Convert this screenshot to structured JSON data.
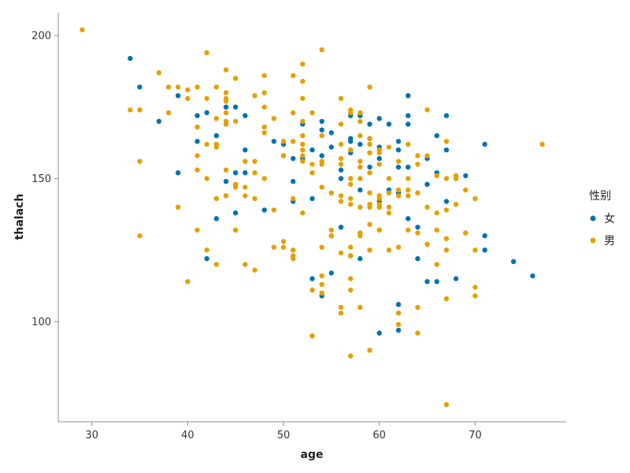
{
  "chart_data": {
    "type": "scatter",
    "xlabel": "age",
    "ylabel": "thalach",
    "xlim": [
      26.5,
      79.5
    ],
    "ylim": [
      65,
      208
    ],
    "xticks": [
      30,
      40,
      50,
      60,
      70
    ],
    "yticks": [
      100,
      150,
      200
    ],
    "grid": false,
    "legend": {
      "title": "性别",
      "position": "right"
    },
    "series": [
      {
        "name": "女",
        "color": "#0072b2",
        "points": [
          [
            34,
            192
          ],
          [
            35,
            182
          ],
          [
            37,
            170
          ],
          [
            39,
            179
          ],
          [
            39,
            152
          ],
          [
            41,
            172
          ],
          [
            41,
            163
          ],
          [
            42,
            173
          ],
          [
            42,
            122
          ],
          [
            43,
            165
          ],
          [
            43,
            136
          ],
          [
            44,
            175
          ],
          [
            44,
            149
          ],
          [
            45,
            175
          ],
          [
            45,
            152
          ],
          [
            45,
            138
          ],
          [
            46,
            172
          ],
          [
            46,
            160
          ],
          [
            46,
            152
          ],
          [
            48,
            139
          ],
          [
            49,
            163
          ],
          [
            50,
            162
          ],
          [
            50,
            158
          ],
          [
            51,
            157
          ],
          [
            51,
            149
          ],
          [
            51,
            142
          ],
          [
            52,
            169
          ],
          [
            52,
            157
          ],
          [
            53,
            160
          ],
          [
            53,
            143
          ],
          [
            53,
            115
          ],
          [
            54,
            170
          ],
          [
            54,
            167
          ],
          [
            54,
            158
          ],
          [
            54,
            109
          ],
          [
            55,
            166
          ],
          [
            55,
            161
          ],
          [
            55,
            130
          ],
          [
            55,
            117
          ],
          [
            56,
            153
          ],
          [
            56,
            150
          ],
          [
            56,
            133
          ],
          [
            57,
            172
          ],
          [
            57,
            164
          ],
          [
            57,
            163
          ],
          [
            57,
            159
          ],
          [
            57,
            123
          ],
          [
            58,
            172
          ],
          [
            58,
            162
          ],
          [
            58,
            146
          ],
          [
            58,
            122
          ],
          [
            59,
            169
          ],
          [
            59,
            164
          ],
          [
            59,
            154
          ],
          [
            60,
            171
          ],
          [
            60,
            161
          ],
          [
            60,
            157
          ],
          [
            60,
            142
          ],
          [
            60,
            96
          ],
          [
            61,
            169
          ],
          [
            61,
            146
          ],
          [
            62,
            163
          ],
          [
            62,
            160
          ],
          [
            62,
            154
          ],
          [
            62,
            145
          ],
          [
            62,
            106
          ],
          [
            62,
            97
          ],
          [
            63,
            179
          ],
          [
            63,
            172
          ],
          [
            63,
            169
          ],
          [
            63,
            154
          ],
          [
            63,
            136
          ],
          [
            64,
            133
          ],
          [
            64,
            122
          ],
          [
            65,
            157
          ],
          [
            65,
            148
          ],
          [
            65,
            114
          ],
          [
            66,
            165
          ],
          [
            66,
            152
          ],
          [
            66,
            114
          ],
          [
            67,
            172
          ],
          [
            67,
            160
          ],
          [
            67,
            142
          ],
          [
            68,
            115
          ],
          [
            69,
            151
          ],
          [
            71,
            162
          ],
          [
            71,
            130
          ],
          [
            71,
            125
          ],
          [
            74,
            121
          ],
          [
            76,
            116
          ]
        ]
      },
      {
        "name": "男",
        "color": "#e69f00",
        "points": [
          [
            29,
            202
          ],
          [
            34,
            174
          ],
          [
            35,
            174
          ],
          [
            35,
            156
          ],
          [
            35,
            130
          ],
          [
            37,
            187
          ],
          [
            38,
            182
          ],
          [
            38,
            173
          ],
          [
            39,
            182
          ],
          [
            39,
            140
          ],
          [
            40,
            181
          ],
          [
            40,
            178
          ],
          [
            40,
            114
          ],
          [
            41,
            182
          ],
          [
            41,
            168
          ],
          [
            41,
            158
          ],
          [
            41,
            153
          ],
          [
            41,
            132
          ],
          [
            42,
            194
          ],
          [
            42,
            178
          ],
          [
            42,
            162
          ],
          [
            42,
            150
          ],
          [
            42,
            125
          ],
          [
            43,
            182
          ],
          [
            43,
            171
          ],
          [
            43,
            162
          ],
          [
            43,
            161
          ],
          [
            43,
            143
          ],
          [
            43,
            120
          ],
          [
            44,
            188
          ],
          [
            44,
            180
          ],
          [
            44,
            178
          ],
          [
            44,
            177
          ],
          [
            44,
            173
          ],
          [
            44,
            170
          ],
          [
            44,
            169
          ],
          [
            44,
            153
          ],
          [
            44,
            144
          ],
          [
            45,
            185
          ],
          [
            45,
            170
          ],
          [
            45,
            148
          ],
          [
            45,
            147
          ],
          [
            45,
            132
          ],
          [
            46,
            156
          ],
          [
            46,
            147
          ],
          [
            46,
            144
          ],
          [
            46,
            120
          ],
          [
            47,
            179
          ],
          [
            47,
            156
          ],
          [
            47,
            152
          ],
          [
            47,
            143
          ],
          [
            47,
            118
          ],
          [
            48,
            186
          ],
          [
            48,
            180
          ],
          [
            48,
            175
          ],
          [
            48,
            168
          ],
          [
            48,
            166
          ],
          [
            48,
            150
          ],
          [
            49,
            171
          ],
          [
            49,
            139
          ],
          [
            49,
            126
          ],
          [
            50,
            163
          ],
          [
            50,
            158
          ],
          [
            50,
            128
          ],
          [
            50,
            126
          ],
          [
            51,
            186
          ],
          [
            51,
            173
          ],
          [
            51,
            163
          ],
          [
            51,
            143
          ],
          [
            51,
            125
          ],
          [
            51,
            123
          ],
          [
            51,
            122
          ],
          [
            52,
            190
          ],
          [
            52,
            184
          ],
          [
            52,
            178
          ],
          [
            52,
            170
          ],
          [
            52,
            165
          ],
          [
            52,
            162
          ],
          [
            52,
            160
          ],
          [
            52,
            158
          ],
          [
            52,
            156
          ],
          [
            52,
            138
          ],
          [
            53,
            173
          ],
          [
            53,
            155
          ],
          [
            53,
            152
          ],
          [
            53,
            111
          ],
          [
            53,
            95
          ],
          [
            54,
            195
          ],
          [
            54,
            165
          ],
          [
            54,
            156
          ],
          [
            54,
            155
          ],
          [
            54,
            147
          ],
          [
            54,
            126
          ],
          [
            54,
            116
          ],
          [
            54,
            113
          ],
          [
            54,
            110
          ],
          [
            55,
            145
          ],
          [
            55,
            132
          ],
          [
            55,
            130
          ],
          [
            56,
            178
          ],
          [
            56,
            169
          ],
          [
            56,
            162
          ],
          [
            56,
            157
          ],
          [
            56,
            155
          ],
          [
            56,
            144
          ],
          [
            56,
            142
          ],
          [
            56,
            124
          ],
          [
            56,
            105
          ],
          [
            56,
            103
          ],
          [
            57,
            174
          ],
          [
            57,
            173
          ],
          [
            57,
            160
          ],
          [
            57,
            150
          ],
          [
            57,
            148
          ],
          [
            57,
            143
          ],
          [
            57,
            141
          ],
          [
            57,
            126
          ],
          [
            57,
            123
          ],
          [
            57,
            115
          ],
          [
            57,
            111
          ],
          [
            57,
            88
          ],
          [
            58,
            173
          ],
          [
            58,
            170
          ],
          [
            58,
            165
          ],
          [
            58,
            156
          ],
          [
            58,
            154
          ],
          [
            58,
            150
          ],
          [
            58,
            140
          ],
          [
            58,
            131
          ],
          [
            58,
            130
          ],
          [
            58,
            105
          ],
          [
            59,
            182
          ],
          [
            59,
            164
          ],
          [
            59,
            162
          ],
          [
            59,
            159
          ],
          [
            59,
            152
          ],
          [
            59,
            145
          ],
          [
            59,
            141
          ],
          [
            59,
            140
          ],
          [
            59,
            134
          ],
          [
            59,
            125
          ],
          [
            59,
            90
          ],
          [
            60,
            160
          ],
          [
            60,
            159
          ],
          [
            60,
            155
          ],
          [
            60,
            144
          ],
          [
            60,
            143
          ],
          [
            60,
            141
          ],
          [
            60,
            140
          ],
          [
            60,
            132
          ],
          [
            61,
            161
          ],
          [
            61,
            150
          ],
          [
            61,
            145
          ],
          [
            61,
            140
          ],
          [
            61,
            138
          ],
          [
            61,
            125
          ],
          [
            62,
            156
          ],
          [
            62,
            146
          ],
          [
            62,
            144
          ],
          [
            62,
            126
          ],
          [
            62,
            103
          ],
          [
            62,
            99
          ],
          [
            63,
            162
          ],
          [
            63,
            150
          ],
          [
            63,
            146
          ],
          [
            63,
            144
          ],
          [
            63,
            132
          ],
          [
            64,
            158
          ],
          [
            64,
            155
          ],
          [
            64,
            145
          ],
          [
            64,
            131
          ],
          [
            64,
            105
          ],
          [
            64,
            96
          ],
          [
            65,
            174
          ],
          [
            65,
            158
          ],
          [
            65,
            140
          ],
          [
            65,
            127
          ],
          [
            66,
            151
          ],
          [
            66,
            138
          ],
          [
            66,
            132
          ],
          [
            66,
            120
          ],
          [
            67,
            163
          ],
          [
            67,
            150
          ],
          [
            67,
            139
          ],
          [
            67,
            129
          ],
          [
            67,
            125
          ],
          [
            67,
            108
          ],
          [
            67,
            71
          ],
          [
            68,
            151
          ],
          [
            68,
            150
          ],
          [
            68,
            141
          ],
          [
            69,
            146
          ],
          [
            69,
            131
          ],
          [
            70,
            143
          ],
          [
            70,
            125
          ],
          [
            70,
            112
          ],
          [
            70,
            109
          ],
          [
            77,
            162
          ]
        ]
      }
    ]
  }
}
